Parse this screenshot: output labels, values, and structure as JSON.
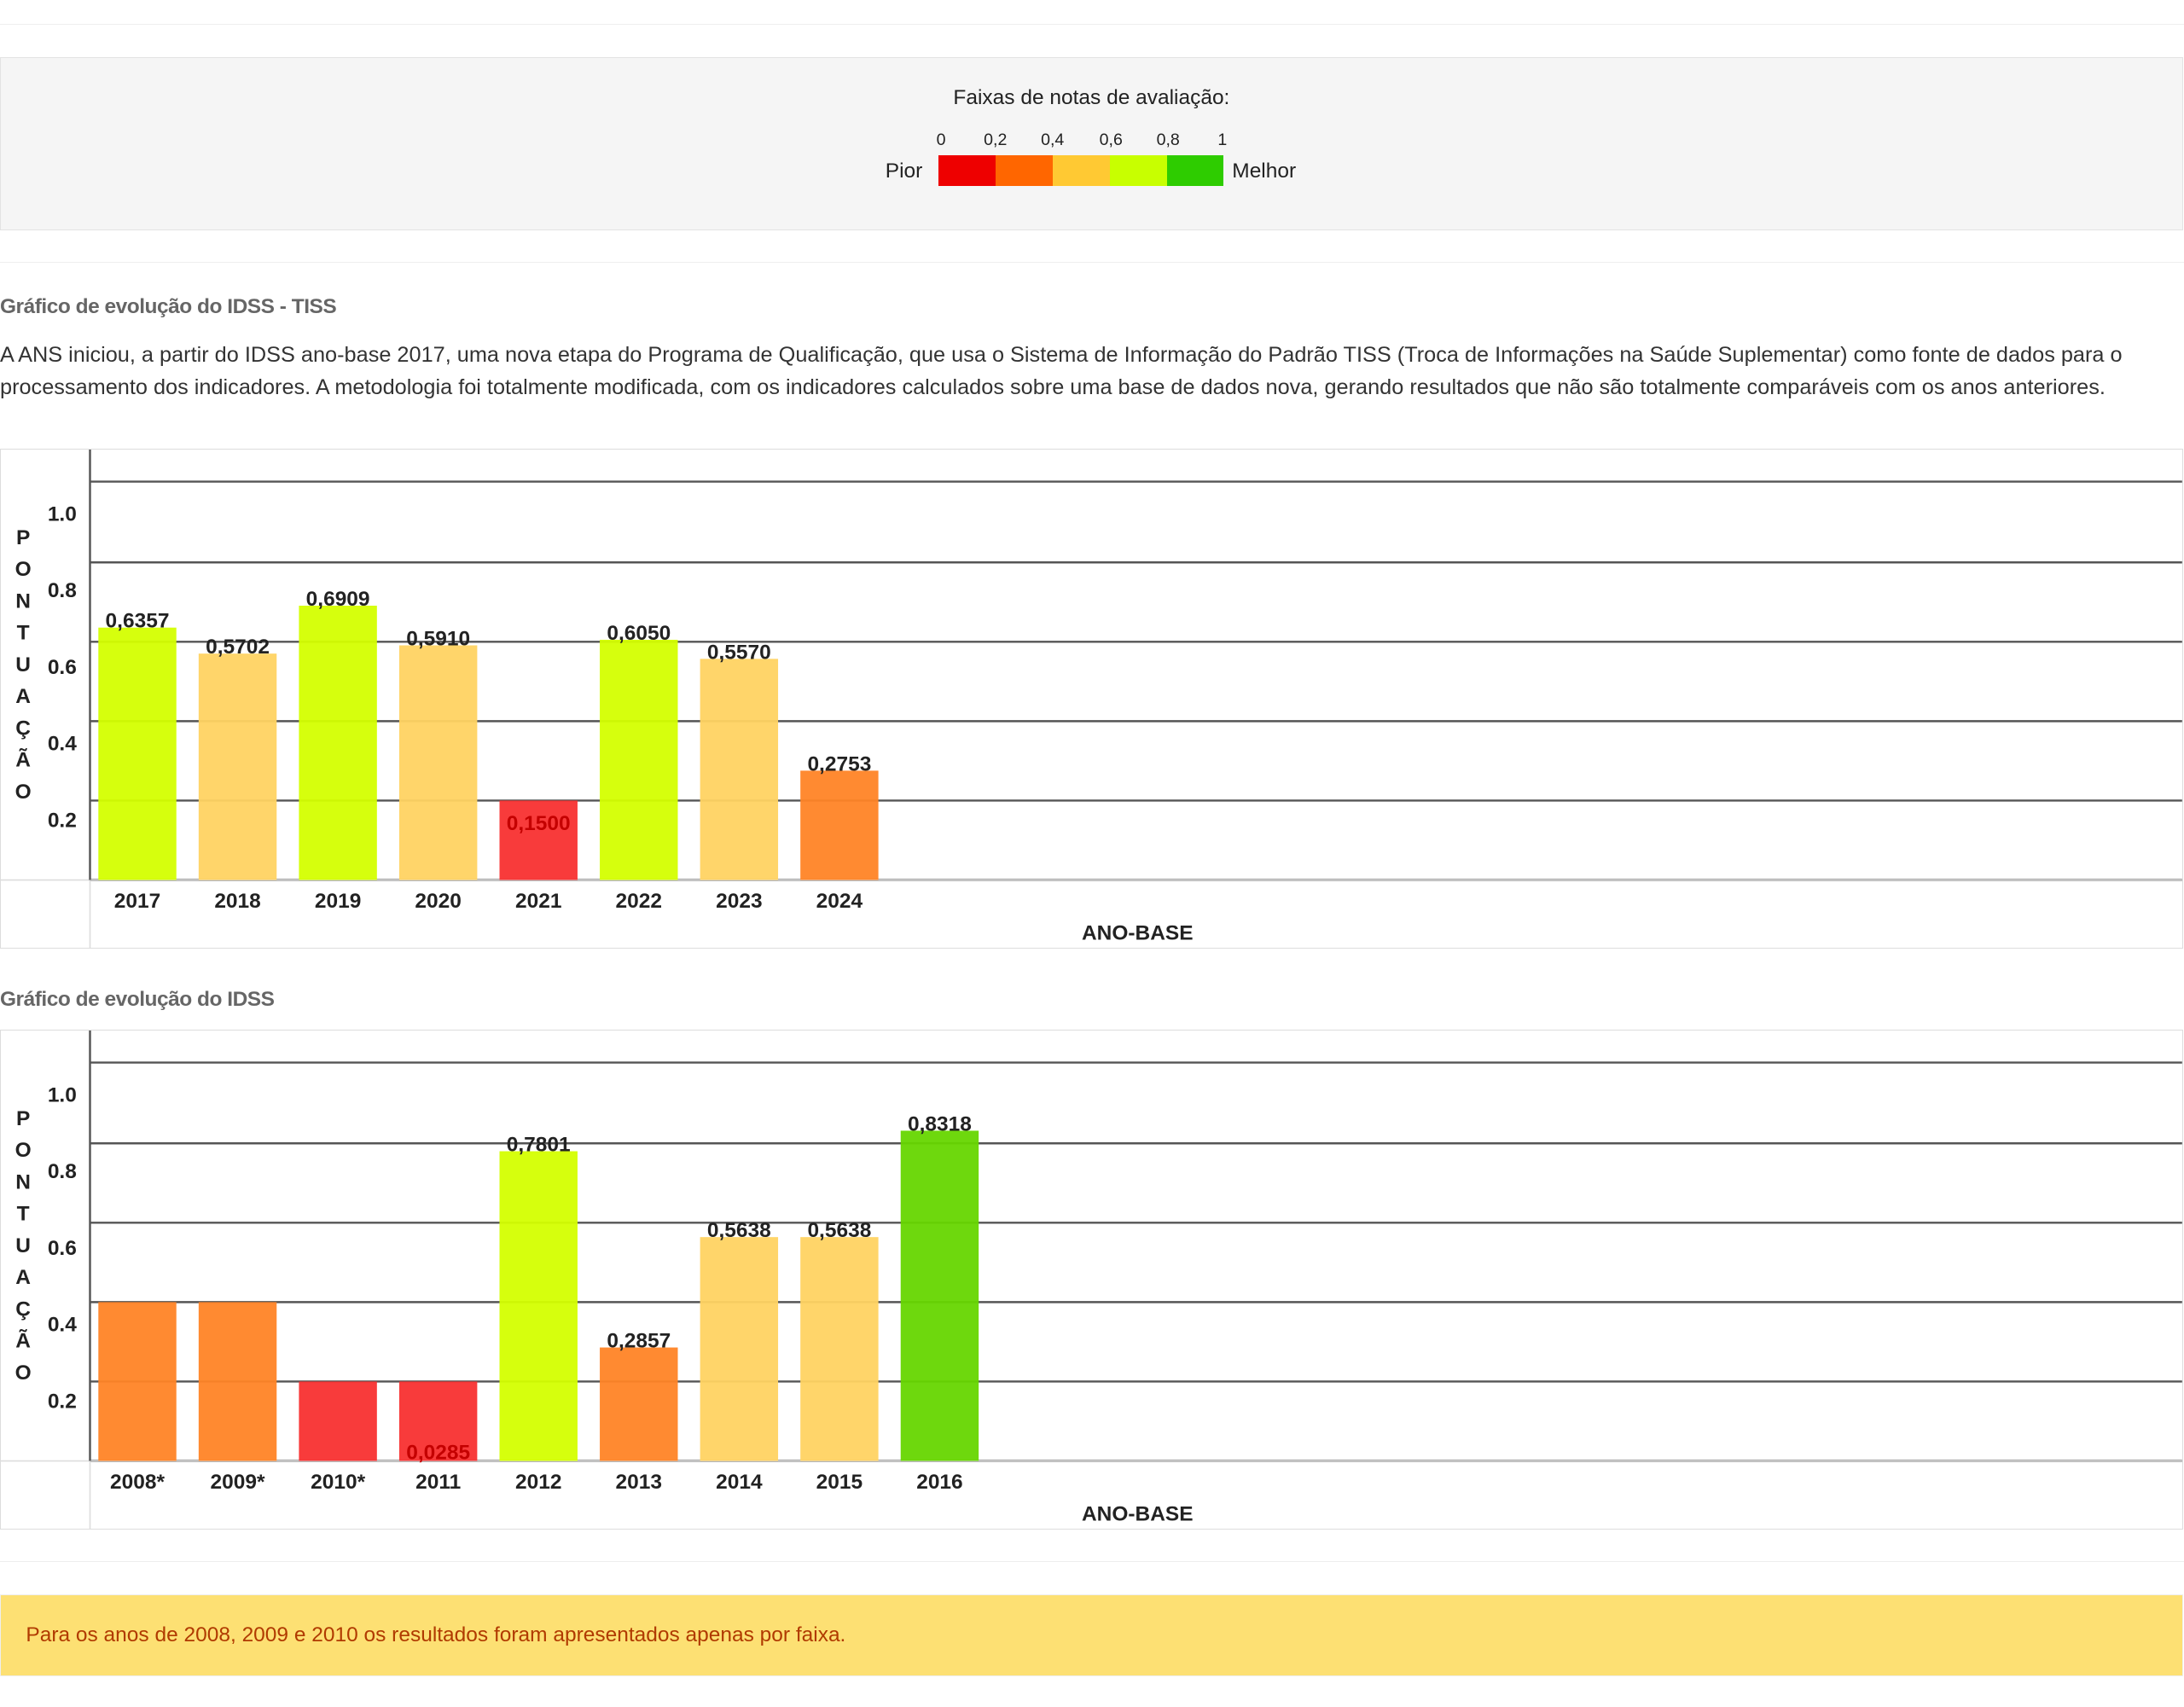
{
  "legend": {
    "title": "Faixas de notas de avaliação:",
    "ticks": [
      "0",
      "0,2",
      "0,4",
      "0,6",
      "0,8",
      "1"
    ],
    "worst_label": "Pior",
    "best_label": "Melhor",
    "band_colors": [
      "#ee0000",
      "#ff6600",
      "#ffc933",
      "#c8ff00",
      "#2ecc00"
    ]
  },
  "section_tiss": {
    "heading": "Gráfico de evolução do IDSS - TISS",
    "paragraph": "A ANS iniciou, a partir do IDSS ano-base 2017, uma nova etapa do Programa de Qualificação, que usa o Sistema de Informação do Padrão TISS (Troca de Informações na Saúde Suplementar) como fonte de dados para o processamento dos indicadores. A metodologia foi totalmente modificada, com os indicadores calculados sobre uma base de dados nova, gerando resultados que não são totalmente comparáveis com os anos anteriores."
  },
  "section_idss": {
    "heading": "Gráfico de evolução do IDSS"
  },
  "note": "Para os anos de 2008, 2009 e 2010 os resultados foram apresentados apenas por faixa.",
  "chart_data": [
    {
      "type": "bar",
      "title": "",
      "xlabel": "ANO-BASE",
      "ylabel": "PONTUAÇÃO",
      "ylim": [
        0,
        1.0
      ],
      "yticks": [
        "1.0",
        "0.8",
        "0.6",
        "0.4",
        "0.2"
      ],
      "grid": true,
      "categories": [
        "2017",
        "2018",
        "2019",
        "2020",
        "2021",
        "2022",
        "2023",
        "2024"
      ],
      "values": [
        0.6357,
        0.5702,
        0.6909,
        0.591,
        0.15,
        0.605,
        0.557,
        0.2753
      ],
      "labels": [
        "0,6357",
        "0,5702",
        "0,6909",
        "0,5910",
        "0,1500",
        "0,6050",
        "0,5570",
        "0,2753"
      ],
      "colors": [
        "#d4ff00",
        "#ffd362",
        "#d4ff00",
        "#ffd362",
        "#f83030",
        "#d4ff00",
        "#ffd362",
        "#ff8426"
      ]
    },
    {
      "type": "bar",
      "title": "",
      "xlabel": "ANO-BASE",
      "ylabel": "PONTUAÇÃO",
      "ylim": [
        0,
        1.0
      ],
      "yticks": [
        "1.0",
        "0.8",
        "0.6",
        "0.4",
        "0.2"
      ],
      "grid": true,
      "categories": [
        "2008*",
        "2009*",
        "2010*",
        "2011",
        "2012",
        "2013",
        "2014",
        "2015",
        "2016"
      ],
      "values": [
        0.4,
        0.4,
        0.2,
        0.0285,
        0.7801,
        0.2857,
        0.5638,
        0.5638,
        0.8318
      ],
      "labels": [
        "",
        "",
        "",
        "0,0285",
        "0,7801",
        "0,2857",
        "0,5638",
        "0,5638",
        "0,8318"
      ],
      "colors": [
        "#ff8426",
        "#ff8426",
        "#f83030",
        "#f83030",
        "#d4ff00",
        "#ff8426",
        "#ffd362",
        "#ffd362",
        "#66d600"
      ]
    }
  ]
}
